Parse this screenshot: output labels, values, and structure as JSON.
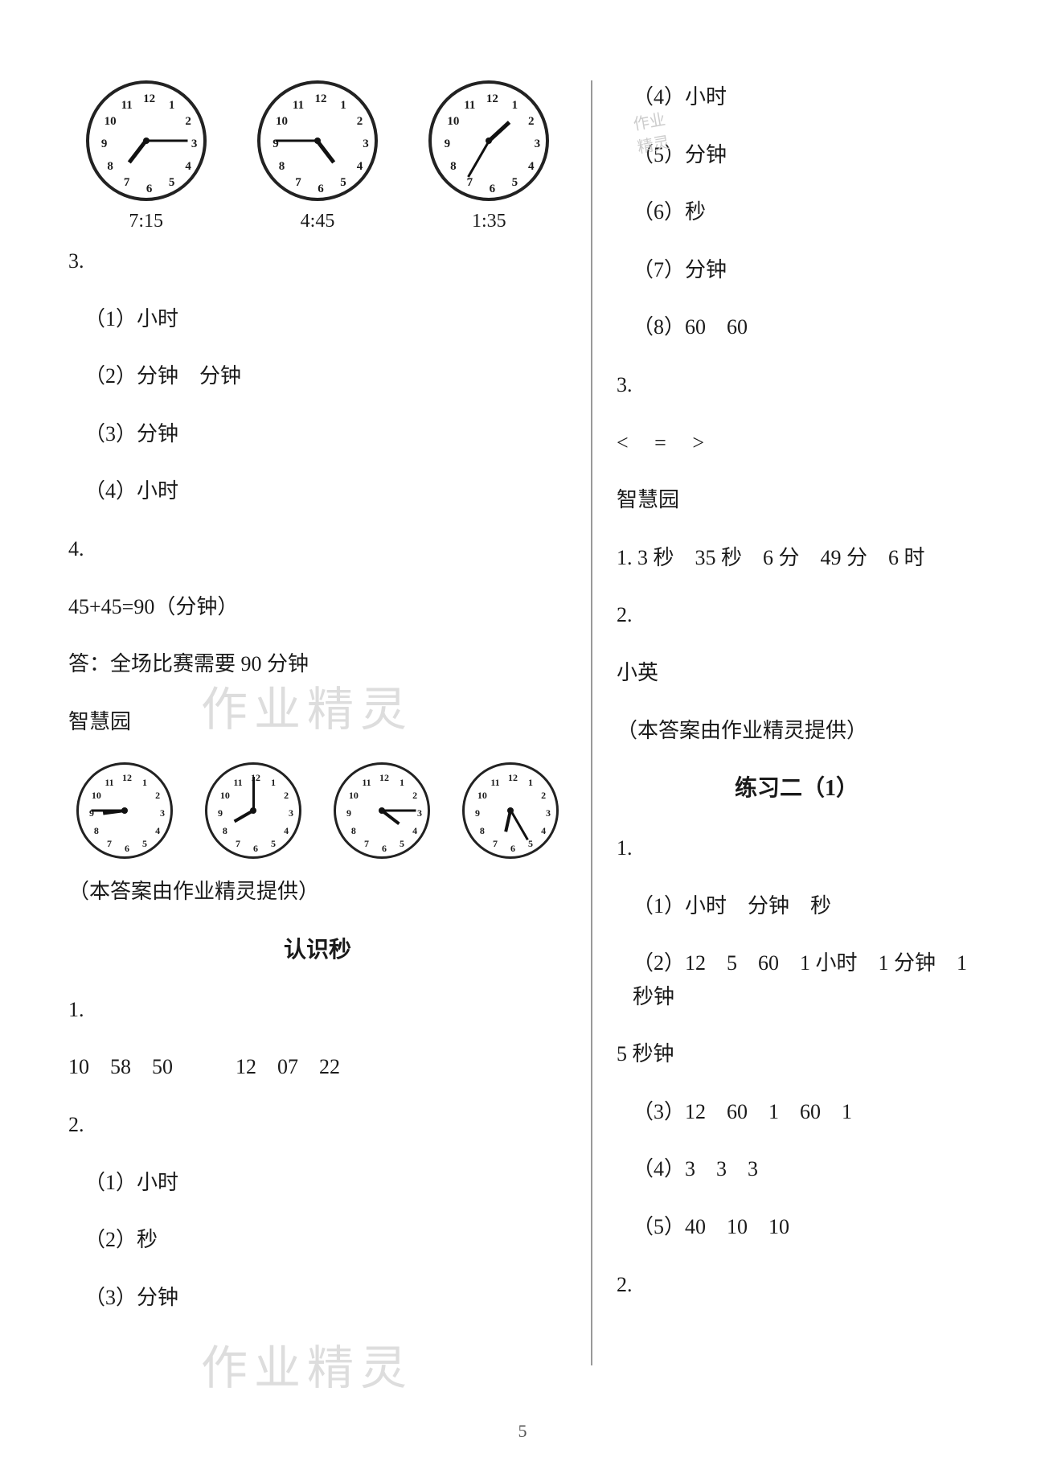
{
  "left": {
    "clocks_top": [
      {
        "hour": 7,
        "minute": 15,
        "label": "7:15"
      },
      {
        "hour": 4,
        "minute": 45,
        "label": "4:45"
      },
      {
        "hour": 1,
        "minute": 35,
        "label": "1:35"
      }
    ],
    "q3_label": "3.",
    "q3_items": [
      "（1）小时",
      "（2）分钟　分钟",
      "（3）分钟",
      "（4）小时"
    ],
    "q4_label": "4.",
    "q4_calc": "45+45=90（分钟）",
    "q4_answer": "答：全场比赛需要 90 分钟",
    "zhy_label": "智慧园",
    "clocks_bottom": [
      {
        "hour": 8,
        "minute": 45
      },
      {
        "hour": 8,
        "minute": 0
      },
      {
        "hour": 4,
        "minute": 15
      },
      {
        "hour": 6,
        "minute": 25
      }
    ],
    "credit": "（本答案由作业精灵提供）",
    "title2": "认识秒",
    "s1_label": "1.",
    "s1_line": "10　58　50　　　12　07　22",
    "s2_label": "2.",
    "s2_items": [
      "（1）小时",
      "（2）秒",
      "（3）分钟"
    ]
  },
  "right": {
    "s2_more": [
      "（4）小时",
      "（5）分钟",
      "（6）秒",
      "（7）分钟",
      "（8）60　60"
    ],
    "s3_label": "3.",
    "s3_line": "<　 =　 >",
    "zhy_label": "智慧园",
    "zhy_1": "1. 3 秒　35 秒　6 分　49 分　6 时",
    "zhy_2_label": "2.",
    "zhy_2_answer": "小英",
    "credit": "（本答案由作业精灵提供）",
    "title3": "练习二（1）",
    "p1_label": "1.",
    "p1_items": [
      "（1）小时　分钟　秒",
      "（2）12　5　60　1 小时　1 分钟　1 秒钟",
      "5 秒钟",
      "（3）12　60　1　60　1",
      "（4）3　3　3",
      "（5）40　10　10"
    ],
    "p2_label": "2."
  },
  "page_number": "5",
  "watermarks": {
    "mid_label": "作业精灵",
    "bottom_label": "作业精灵",
    "stamp1": "作业",
    "stamp2": "精灵"
  },
  "style": {
    "font_size_body": 26,
    "font_size_title": 28,
    "text_color": "#1a1a1a",
    "watermark_color": "#dddddd",
    "background": "#ffffff",
    "divider_color": "#999999"
  }
}
